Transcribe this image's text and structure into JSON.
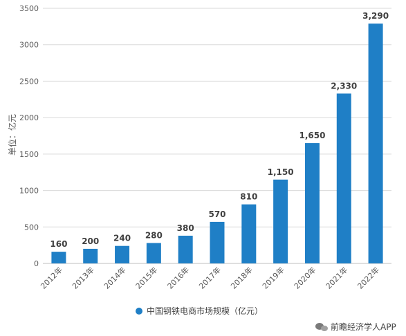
{
  "chart_data": {
    "type": "bar",
    "categories": [
      "2012年",
      "2013年",
      "2014年",
      "2015年",
      "2016年",
      "2017年",
      "2018年",
      "2019年",
      "2020年",
      "2021年",
      "2022年"
    ],
    "series": [
      {
        "name": "中国钢铁电商市场规模（亿元）",
        "values": [
          160,
          200,
          240,
          280,
          380,
          570,
          810,
          1150,
          1650,
          2330,
          3290
        ]
      }
    ],
    "data_labels": [
      "160",
      "200",
      "240",
      "280",
      "380",
      "570",
      "810",
      "1,150",
      "1,650",
      "2,330",
      "3,290"
    ],
    "y_ticks": [
      "0",
      "500",
      "1000",
      "1500",
      "2000",
      "2500",
      "3000",
      "3500"
    ],
    "ylim": [
      0,
      3500
    ],
    "ylabel": "单位：亿元",
    "xlabel": "",
    "title": "",
    "grid": true,
    "legend": "bottom-center",
    "bar_color": "#1f7fc6"
  },
  "source": "前瞻经济学人APP",
  "source_icon": "wechat-icon"
}
